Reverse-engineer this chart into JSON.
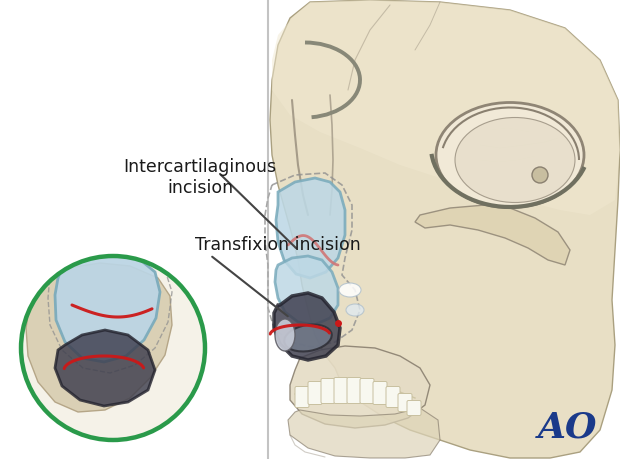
{
  "bg_color": "#ffffff",
  "label1": "Intercartilaginous\nincision",
  "label2": "Transfixion incision",
  "ao_text": "AO",
  "ao_color": "#1a3a8a",
  "ao_fontsize": 26,
  "label_fontsize": 12.5,
  "skull_color": "#e8dfc5",
  "skull_edge": "#aaa080",
  "skull_line_color": "#8a8070",
  "cartilage_color": "#bdd8e5",
  "cartilage_edge": "#7aaBBc",
  "cartilage_dark": "#8ab8cc",
  "red_line_color": "#cc1818",
  "pink_line": "#d07878",
  "green_circle_color": "#2a9a4a",
  "dark_nose": "#3a3a4a",
  "nose_gray": "#7a8090",
  "separator_color": "#aaaaaa"
}
